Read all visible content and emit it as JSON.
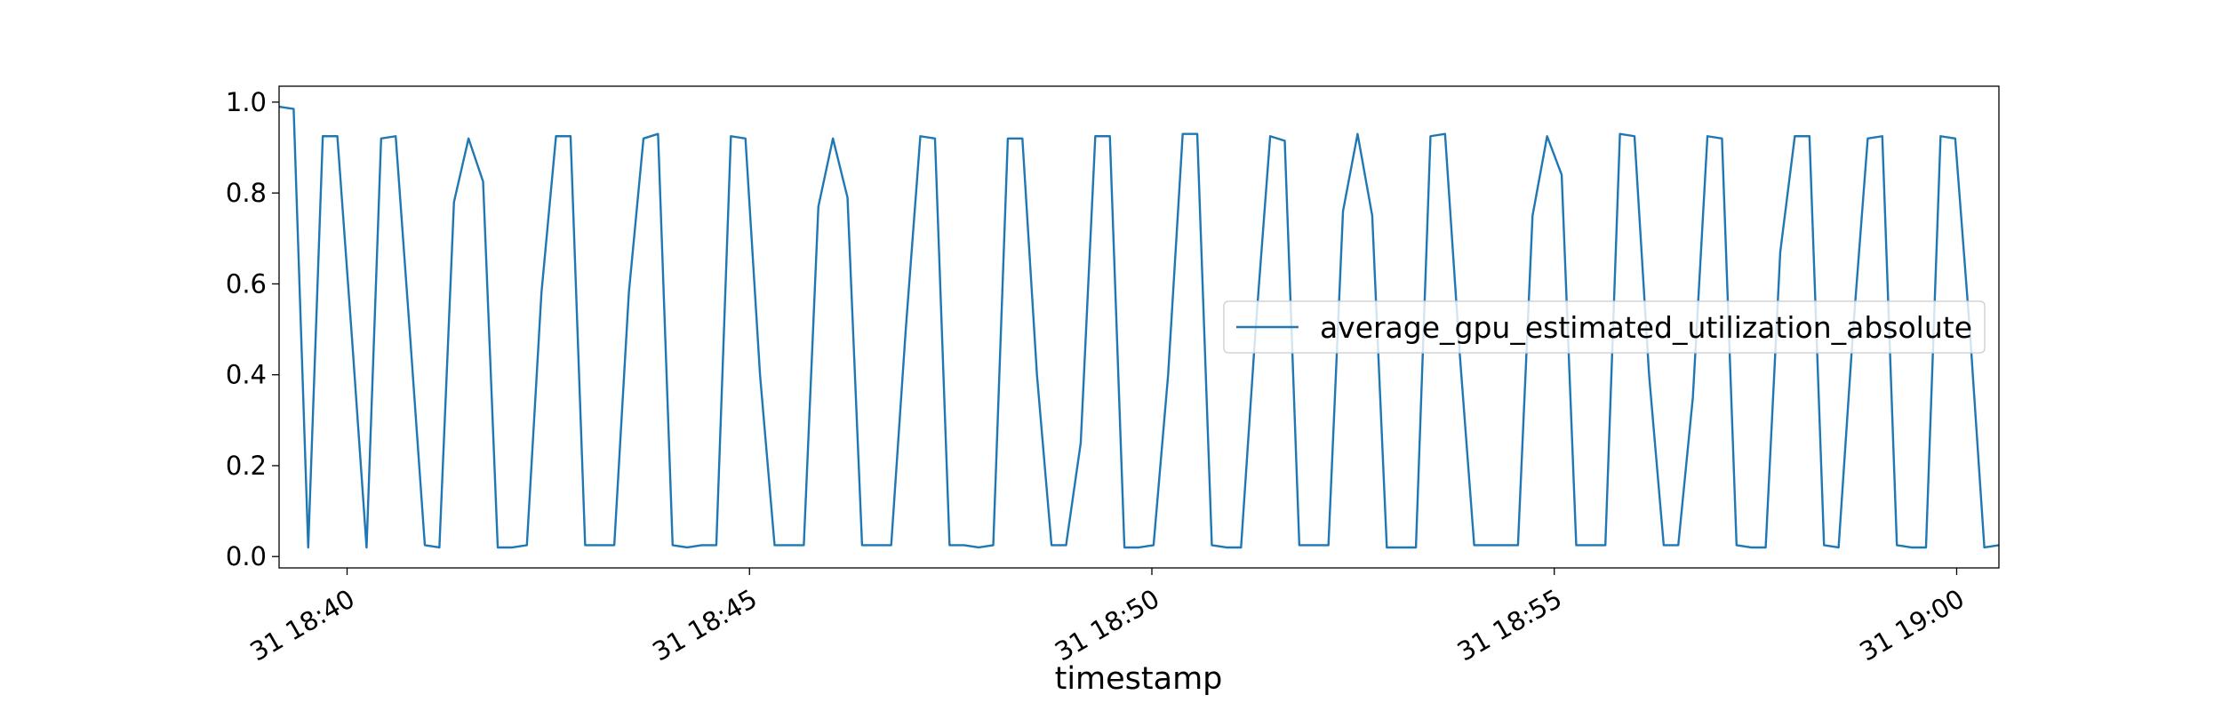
{
  "chart_data": {
    "type": "line",
    "xlabel": "timestamp",
    "x": [
      1119.155,
      1119.336,
      1119.517,
      1119.698,
      1119.879,
      1120.061,
      1120.242,
      1120.423,
      1120.604,
      1120.785,
      1120.966,
      1121.147,
      1121.328,
      1121.509,
      1121.69,
      1121.872,
      1122.053,
      1122.234,
      1122.415,
      1122.596,
      1122.777,
      1122.958,
      1123.139,
      1123.32,
      1123.501,
      1123.683,
      1123.864,
      1124.045,
      1124.226,
      1124.407,
      1124.588,
      1124.769,
      1124.95,
      1125.131,
      1125.312,
      1125.494,
      1125.675,
      1125.856,
      1126.037,
      1126.218,
      1126.399,
      1126.58,
      1126.761,
      1126.942,
      1127.123,
      1127.305,
      1127.486,
      1127.667,
      1127.848,
      1128.029,
      1128.21,
      1128.391,
      1128.572,
      1128.753,
      1128.934,
      1129.116,
      1129.297,
      1129.478,
      1129.659,
      1129.84,
      1130.021,
      1130.202,
      1130.383,
      1130.564,
      1130.745,
      1130.927,
      1131.108,
      1131.289,
      1131.47,
      1131.651,
      1131.832,
      1132.013,
      1132.194,
      1132.375,
      1132.556,
      1132.738,
      1132.919,
      1133.1,
      1133.281,
      1133.462,
      1133.643,
      1133.824,
      1134.005,
      1134.186,
      1134.367,
      1134.549,
      1134.73,
      1134.911,
      1135.092,
      1135.273,
      1135.454,
      1135.635,
      1135.816,
      1135.997,
      1136.178,
      1136.36,
      1136.541,
      1136.722,
      1136.903,
      1137.084,
      1137.265,
      1137.446,
      1137.627,
      1137.808,
      1137.989,
      1138.171,
      1138.352,
      1138.533,
      1138.714,
      1138.895,
      1139.076,
      1139.257,
      1139.438,
      1139.619,
      1139.8,
      1139.982,
      1140.163,
      1140.344,
      1140.525
    ],
    "series": [
      {
        "name": "average_gpu_estimated_utilization_absolute",
        "color": "#1f77b4",
        "values": [
          0.99,
          0.985,
          0.02,
          0.925,
          0.925,
          0.48,
          0.02,
          0.92,
          0.925,
          0.48,
          0.025,
          0.02,
          0.78,
          0.92,
          0.825,
          0.02,
          0.02,
          0.025,
          0.58,
          0.925,
          0.925,
          0.025,
          0.025,
          0.025,
          0.58,
          0.92,
          0.93,
          0.025,
          0.02,
          0.025,
          0.025,
          0.925,
          0.92,
          0.4,
          0.025,
          0.025,
          0.025,
          0.77,
          0.92,
          0.79,
          0.025,
          0.025,
          0.025,
          0.5,
          0.925,
          0.92,
          0.025,
          0.025,
          0.02,
          0.025,
          0.92,
          0.92,
          0.4,
          0.025,
          0.025,
          0.25,
          0.925,
          0.925,
          0.02,
          0.02,
          0.025,
          0.4,
          0.93,
          0.93,
          0.025,
          0.02,
          0.02,
          0.5,
          0.925,
          0.915,
          0.025,
          0.025,
          0.025,
          0.76,
          0.93,
          0.75,
          0.02,
          0.02,
          0.02,
          0.925,
          0.93,
          0.45,
          0.025,
          0.025,
          0.025,
          0.025,
          0.75,
          0.925,
          0.84,
          0.025,
          0.025,
          0.025,
          0.93,
          0.925,
          0.4,
          0.025,
          0.025,
          0.35,
          0.925,
          0.92,
          0.025,
          0.02,
          0.02,
          0.67,
          0.925,
          0.925,
          0.025,
          0.02,
          0.5,
          0.92,
          0.925,
          0.025,
          0.02,
          0.02,
          0.925,
          0.92,
          0.5,
          0.02,
          0.025
        ]
      }
    ],
    "xlim": [
      1119.155,
      1140.525
    ],
    "xticks": [
      {
        "value": 1120,
        "label": "31 18:40"
      },
      {
        "value": 1125,
        "label": "31 18:45"
      },
      {
        "value": 1130,
        "label": "31 18:50"
      },
      {
        "value": 1135,
        "label": "31 18:55"
      },
      {
        "value": 1140,
        "label": "31 19:00"
      }
    ],
    "ylim": [
      -0.025,
      1.035
    ],
    "yticks": [
      {
        "value": 0,
        "label": "0.0"
      },
      {
        "value": 0.2,
        "label": "0.2"
      },
      {
        "value": 0.4,
        "label": "0.4"
      },
      {
        "value": 0.6,
        "label": "0.6"
      },
      {
        "value": 0.8,
        "label": "0.8"
      },
      {
        "value": 1,
        "label": "1.0"
      }
    ],
    "grid": false,
    "legend": "center right"
  }
}
